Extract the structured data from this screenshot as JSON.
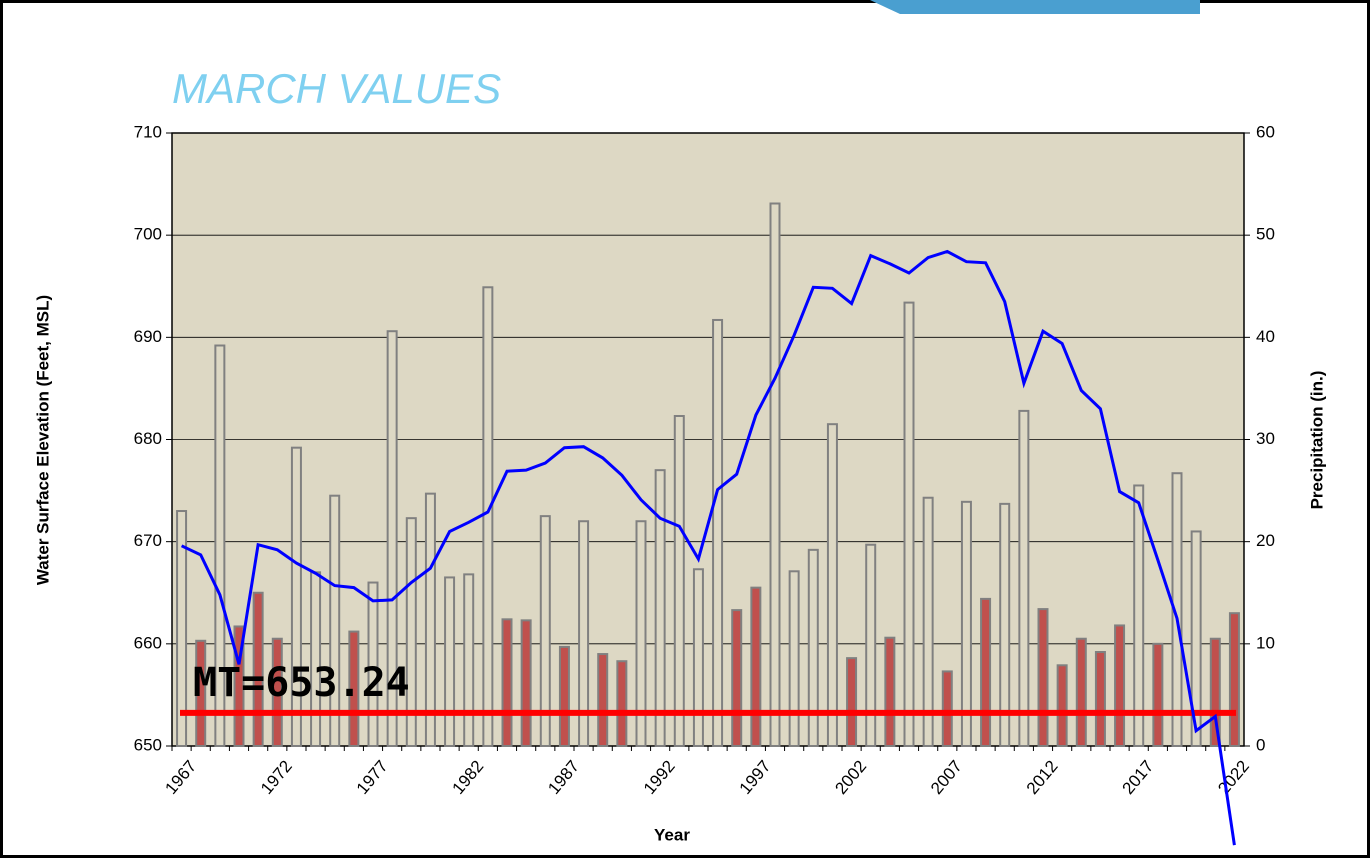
{
  "chart_data": {
    "type": "combo",
    "title": "MARCH VALUES",
    "xlabel": "Year",
    "ylabel": "Water Surface Elevation (Feet, MSL)",
    "y2label": "Precipitation (in.)",
    "categories": [
      "1967",
      null,
      null,
      null,
      null,
      "1972",
      null,
      null,
      null,
      null,
      "1977",
      null,
      null,
      null,
      null,
      "1982",
      null,
      null,
      null,
      null,
      "1987",
      null,
      null,
      null,
      null,
      "1992",
      null,
      null,
      null,
      null,
      "1997",
      null,
      null,
      null,
      null,
      "2002",
      null,
      null,
      null,
      null,
      "2007",
      null,
      null,
      null,
      null,
      "2012",
      null,
      null,
      null,
      null,
      "2017",
      null,
      null,
      null,
      null,
      "2022"
    ],
    "bars": {
      "axis": "y2",
      "values": [
        23.0,
        10.3,
        39.2,
        11.7,
        15.0,
        10.5,
        29.2,
        17.0,
        24.5,
        11.2,
        16.0,
        40.6,
        22.3,
        24.7,
        16.5,
        16.8,
        44.9,
        12.4,
        12.3,
        22.5,
        9.7,
        22.0,
        9.0,
        8.3,
        22.0,
        27.0,
        32.3,
        17.3,
        41.7,
        13.3,
        15.5,
        53.1,
        17.1,
        19.2,
        31.5,
        8.6,
        19.7,
        10.6,
        43.4,
        24.3,
        7.3,
        23.9,
        14.4,
        23.7,
        32.8,
        13.4,
        7.9,
        10.5,
        9.2,
        11.8,
        25.5,
        10.0,
        26.7,
        21.0,
        10.5,
        13.0
      ],
      "colors": [
        "#ddd8c4",
        "#c0504d",
        "#ddd8c4",
        "#c0504d",
        "#c0504d",
        "#c0504d",
        "#ddd8c4",
        "#ddd8c4",
        "#ddd8c4",
        "#c0504d",
        "#ddd8c4",
        "#ddd8c4",
        "#ddd8c4",
        "#ddd8c4",
        "#ddd8c4",
        "#ddd8c4",
        "#ddd8c4",
        "#c0504d",
        "#c0504d",
        "#ddd8c4",
        "#c0504d",
        "#ddd8c4",
        "#c0504d",
        "#c0504d",
        "#ddd8c4",
        "#ddd8c4",
        "#ddd8c4",
        "#ddd8c4",
        "#ddd8c4",
        "#c0504d",
        "#c0504d",
        "#ddd8c4",
        "#ddd8c4",
        "#ddd8c4",
        "#ddd8c4",
        "#c0504d",
        "#ddd8c4",
        "#c0504d",
        "#ddd8c4",
        "#ddd8c4",
        "#c0504d",
        "#ddd8c4",
        "#c0504d",
        "#ddd8c4",
        "#ddd8c4",
        "#c0504d",
        "#c0504d",
        "#c0504d",
        "#c0504d",
        "#c0504d",
        "#ddd8c4",
        "#c0504d",
        "#ddd8c4",
        "#ddd8c4",
        "#c0504d",
        "#c0504d"
      ],
      "edge": "#808080"
    },
    "line": {
      "axis": "y",
      "color": "#0000ff",
      "values": [
        669.6,
        668.7,
        664.8,
        658.0,
        669.7,
        669.2,
        667.9,
        666.9,
        665.7,
        665.5,
        664.2,
        664.3,
        666.0,
        667.4,
        671.0,
        671.9,
        672.9,
        676.9,
        677.0,
        677.7,
        679.2,
        679.3,
        678.2,
        676.5,
        674.1,
        672.3,
        671.5,
        668.3,
        675.1,
        676.6,
        682.4,
        686.0,
        690.2,
        694.9,
        694.8,
        693.3,
        698.0,
        697.2,
        696.3,
        697.8,
        698.4,
        697.4,
        697.3,
        693.5,
        685.5,
        690.6,
        689.4,
        684.8,
        683.0,
        674.9,
        673.8,
        668.2,
        662.5,
        651.5,
        652.9,
        640.3
      ]
    },
    "annotation": {
      "text": "MT=653.24",
      "value": 653.24,
      "color": "#ff0000"
    },
    "ylim": [
      650,
      710
    ],
    "yticks": [
      650,
      660,
      670,
      680,
      690,
      700,
      710
    ],
    "y2lim": [
      0,
      60
    ],
    "y2ticks": [
      0,
      10,
      20,
      30,
      40,
      50,
      60
    ],
    "grid": true,
    "background": "#ddd8c4"
  }
}
